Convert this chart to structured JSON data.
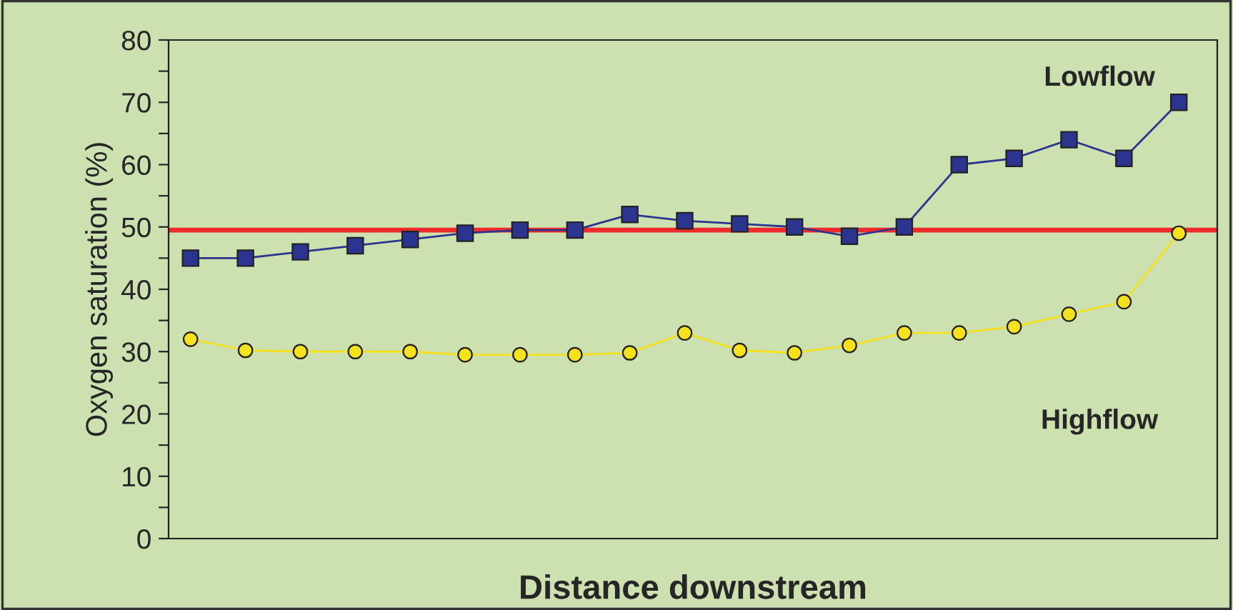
{
  "chart_data": {
    "type": "line",
    "xlabel": "Distance downstream",
    "ylabel": "Oxygen saturation (%)",
    "categories": [
      null,
      null,
      null,
      null,
      null,
      null,
      null,
      null,
      null,
      null,
      null,
      null,
      null,
      null,
      null,
      null,
      null,
      null,
      null
    ],
    "series": [
      {
        "name": "Lowflow",
        "color": "#2b3590",
        "marker": "square",
        "values": [
          45,
          45,
          46,
          47,
          48,
          49,
          49.5,
          49.5,
          52,
          51,
          50.5,
          50,
          48.5,
          50,
          60,
          61,
          64,
          61,
          70
        ]
      },
      {
        "name": "Highflow",
        "color": "#f5e11e",
        "marker": "circle",
        "values": [
          32,
          30.2,
          30,
          30,
          30,
          29.5,
          29.5,
          29.5,
          29.8,
          33,
          30.2,
          29.8,
          31,
          33,
          33,
          34,
          36,
          38,
          49
        ]
      }
    ],
    "ref_lines": [
      {
        "axis": "y",
        "value": 49.5,
        "color": "#ee2a2a"
      }
    ],
    "ylim": [
      0,
      80
    ],
    "yticks": [
      0,
      {
        "value": 5,
        "label": null
      },
      10,
      {
        "value": 15,
        "label": null
      },
      20,
      {
        "value": 25,
        "label": null
      },
      30,
      {
        "value": 35,
        "label": null
      },
      40,
      {
        "value": 45,
        "label": null
      },
      50,
      {
        "value": 55,
        "label": null
      },
      60,
      {
        "value": 65,
        "label": null
      },
      70,
      {
        "value": 75,
        "label": null
      },
      80
    ],
    "tick_labels": "y",
    "grid": false,
    "legend": false,
    "line_style": "solid"
  }
}
